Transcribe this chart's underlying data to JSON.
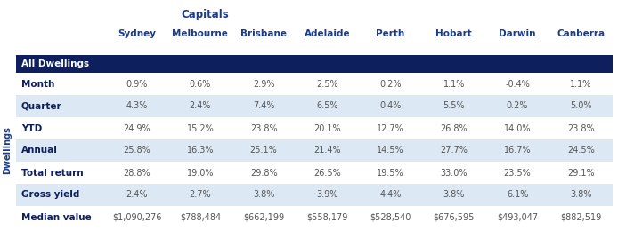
{
  "title_main": "Capitals",
  "title_side": "Dwellings",
  "columns": [
    "Sydney",
    "Melbourne",
    "Brisbane",
    "Adelaide",
    "Perth",
    "Hobart",
    "Darwin",
    "Canberra"
  ],
  "header_row": "All Dwellings",
  "rows": [
    {
      "label": "Month",
      "values": [
        "0.9%",
        "0.6%",
        "2.9%",
        "2.5%",
        "0.2%",
        "1.1%",
        "-0.4%",
        "1.1%"
      ]
    },
    {
      "label": "Quarter",
      "values": [
        "4.3%",
        "2.4%",
        "7.4%",
        "6.5%",
        "0.4%",
        "5.5%",
        "0.2%",
        "5.0%"
      ]
    },
    {
      "label": "YTD",
      "values": [
        "24.9%",
        "15.2%",
        "23.8%",
        "20.1%",
        "12.7%",
        "26.8%",
        "14.0%",
        "23.8%"
      ]
    },
    {
      "label": "Annual",
      "values": [
        "25.8%",
        "16.3%",
        "25.1%",
        "21.4%",
        "14.5%",
        "27.7%",
        "16.7%",
        "24.5%"
      ]
    },
    {
      "label": "Total return",
      "values": [
        "28.8%",
        "19.0%",
        "29.8%",
        "26.5%",
        "19.5%",
        "33.0%",
        "23.5%",
        "29.1%"
      ]
    },
    {
      "label": "Gross yield",
      "values": [
        "2.4%",
        "2.7%",
        "3.8%",
        "3.9%",
        "4.4%",
        "3.8%",
        "6.1%",
        "3.8%"
      ]
    },
    {
      "label": "Median value",
      "values": [
        "$1,090,276",
        "$788,484",
        "$662,199",
        "$558,179",
        "$528,540",
        "$676,595",
        "$493,047",
        "$882,519"
      ]
    }
  ],
  "header_bg": "#0d1f5c",
  "header_fg": "#ffffff",
  "row_bg_even": "#dce9f5",
  "row_bg_odd": "#ffffff",
  "label_color": "#0d1f5c",
  "value_color": "#555555",
  "col_header_color": "#1a3a8c",
  "title_color": "#1a3a8c",
  "side_label_color": "#1a3a8c",
  "font_size_title": 8.5,
  "font_size_col_header": 7.5,
  "font_size_header_row": 7.5,
  "font_size_label": 7.5,
  "font_size_value": 7.0
}
